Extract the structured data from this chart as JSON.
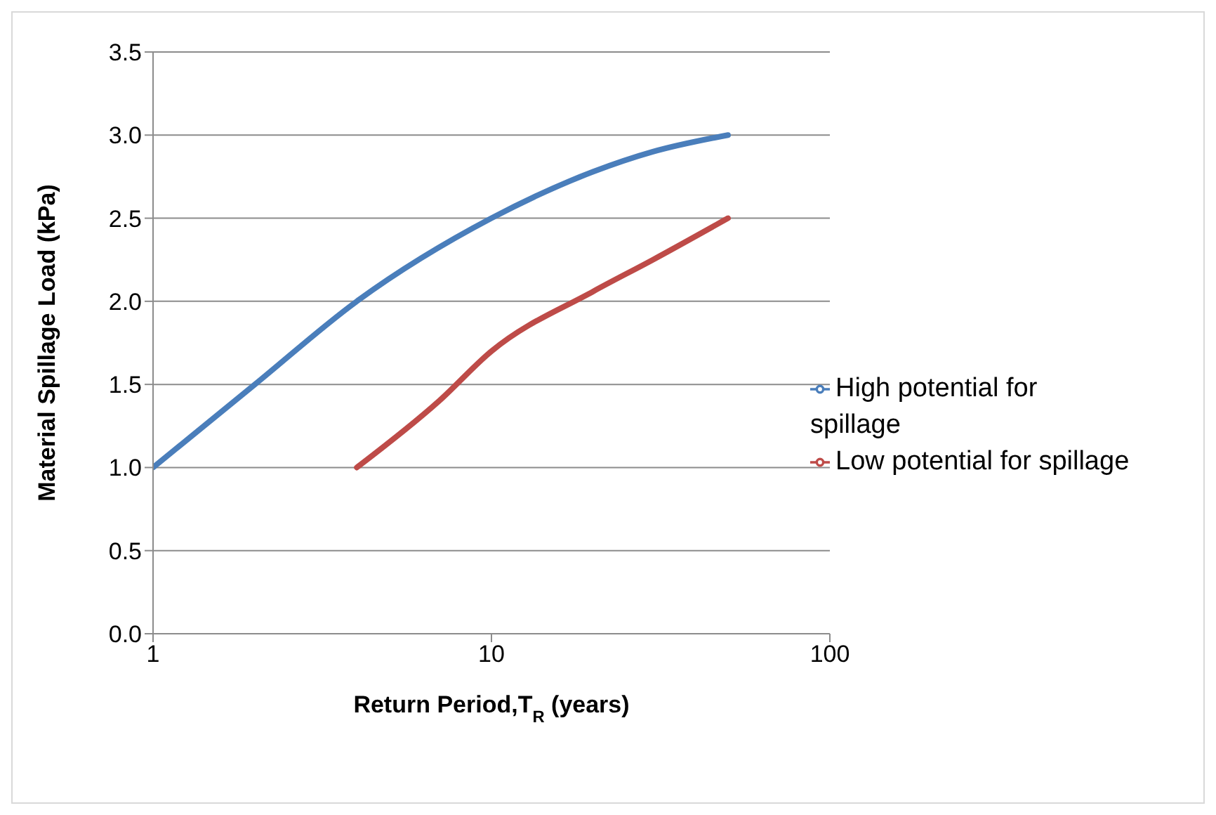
{
  "chart_data": {
    "type": "line",
    "xlabel": "Return Period,T$_{R}$ (years)",
    "ylabel": "Material Spillage Load (kPa)",
    "log": "x",
    "xlim": [
      1,
      100
    ],
    "xticks": [
      1,
      10,
      100
    ],
    "ylim": [
      0,
      3.5
    ],
    "yticks": [
      {
        "value": 0,
        "label": "0.0"
      },
      {
        "value": 0.5,
        "label": "0.5"
      },
      {
        "value": 1,
        "label": "1.0"
      },
      {
        "value": 1.5,
        "label": "1.5"
      },
      {
        "value": 2,
        "label": "2.0"
      },
      {
        "value": 2.5,
        "label": "2.5"
      },
      {
        "value": 3,
        "label": "3.0"
      },
      {
        "value": 3.5,
        "label": "3.5"
      }
    ],
    "grid": "y",
    "legend": "right",
    "marker": "none",
    "line_style": "solid",
    "series": [
      {
        "name": "High potential for spillage",
        "color": "#4a7ebb",
        "x": [
          1,
          2,
          4,
          10,
          20,
          30,
          50
        ],
        "values": [
          1.0,
          1.5,
          2.0,
          2.5,
          2.78,
          2.9,
          3.0
        ]
      },
      {
        "name": "Low potential for spillage",
        "color": "#be4b48",
        "x": [
          4,
          7,
          10,
          20,
          30,
          50
        ],
        "values": [
          1.0,
          1.4,
          1.7,
          2.06,
          2.25,
          2.5
        ]
      }
    ]
  }
}
